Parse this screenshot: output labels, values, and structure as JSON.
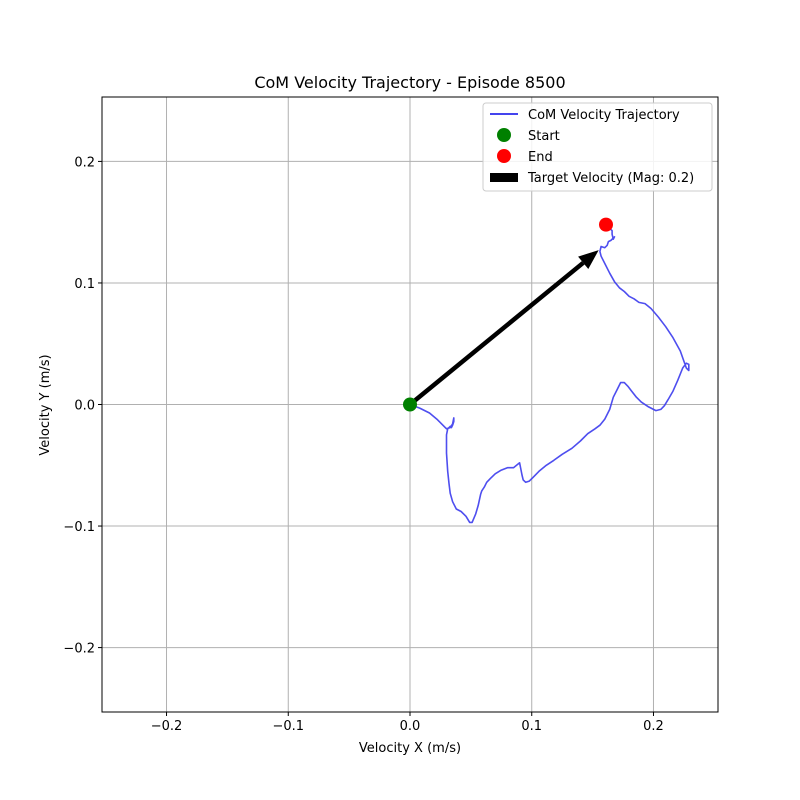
{
  "chart_data": {
    "type": "line",
    "title": "CoM Velocity Trajectory - Episode 8500",
    "xlabel": "Velocity X (m/s)",
    "ylabel": "Velocity Y (m/s)",
    "xlim": [
      -0.253,
      0.253
    ],
    "ylim": [
      -0.253,
      0.253
    ],
    "xticks": [
      -0.2,
      -0.1,
      0.0,
      0.1,
      0.2
    ],
    "yticks": [
      -0.2,
      -0.1,
      0.0,
      0.1,
      0.2
    ],
    "xtick_labels": [
      "−0.2",
      "−0.1",
      "0.0",
      "0.1",
      "0.2"
    ],
    "ytick_labels": [
      "−0.2",
      "−0.1",
      "0.0",
      "0.1",
      "0.2"
    ],
    "grid": true,
    "legend_position": "top-right",
    "series": [
      {
        "name": "CoM Velocity Trajectory",
        "kind": "line",
        "color": "#4444ee",
        "x": [
          0.0,
          0.008,
          0.016,
          0.022,
          0.027,
          0.03,
          0.033,
          0.035,
          0.036,
          0.036,
          0.035,
          0.034,
          0.033,
          0.031,
          0.03,
          0.03,
          0.031,
          0.032,
          0.033,
          0.035,
          0.038,
          0.042,
          0.046,
          0.049,
          0.051,
          0.054,
          0.056,
          0.058,
          0.059,
          0.061,
          0.063,
          0.066,
          0.07,
          0.075,
          0.08,
          0.085,
          0.09,
          0.091,
          0.092,
          0.093,
          0.095,
          0.098,
          0.101,
          0.106,
          0.112,
          0.118,
          0.125,
          0.133,
          0.14,
          0.146,
          0.152,
          0.156,
          0.16,
          0.164,
          0.167,
          0.17,
          0.173,
          0.176,
          0.179,
          0.182,
          0.186,
          0.19,
          0.196,
          0.202,
          0.206,
          0.209,
          0.212,
          0.216,
          0.22,
          0.224,
          0.227,
          0.229,
          0.229,
          0.227,
          0.222,
          0.216,
          0.21,
          0.204,
          0.198,
          0.193,
          0.188,
          0.184,
          0.18,
          0.176,
          0.172,
          0.168,
          0.164,
          0.16,
          0.157,
          0.156,
          0.157,
          0.16,
          0.162,
          0.163,
          0.165,
          0.167,
          0.168,
          0.167,
          0.166,
          0.166,
          0.164,
          0.161
        ],
        "y": [
          0.0,
          -0.003,
          -0.007,
          -0.012,
          -0.017,
          -0.02,
          -0.019,
          -0.016,
          -0.011,
          -0.014,
          -0.017,
          -0.019,
          -0.018,
          -0.02,
          -0.025,
          -0.04,
          -0.055,
          -0.065,
          -0.073,
          -0.08,
          -0.086,
          -0.088,
          -0.092,
          -0.097,
          -0.097,
          -0.09,
          -0.083,
          -0.074,
          -0.071,
          -0.068,
          -0.064,
          -0.061,
          -0.057,
          -0.054,
          -0.052,
          -0.052,
          -0.048,
          -0.053,
          -0.058,
          -0.062,
          -0.064,
          -0.063,
          -0.06,
          -0.055,
          -0.05,
          -0.046,
          -0.041,
          -0.036,
          -0.03,
          -0.024,
          -0.02,
          -0.017,
          -0.012,
          -0.004,
          0.006,
          0.012,
          0.018,
          0.018,
          0.015,
          0.011,
          0.006,
          0.002,
          -0.002,
          -0.005,
          -0.004,
          -0.001,
          0.004,
          0.011,
          0.02,
          0.03,
          0.034,
          0.033,
          0.028,
          0.03,
          0.044,
          0.055,
          0.064,
          0.072,
          0.079,
          0.083,
          0.084,
          0.087,
          0.089,
          0.093,
          0.096,
          0.101,
          0.108,
          0.116,
          0.122,
          0.126,
          0.13,
          0.129,
          0.131,
          0.134,
          0.135,
          0.137,
          0.138,
          0.136,
          0.14,
          0.143,
          0.145,
          0.147
        ]
      },
      {
        "name": "Start",
        "kind": "point",
        "color": "#008000",
        "x": [
          0.0
        ],
        "y": [
          0.0
        ]
      },
      {
        "name": "End",
        "kind": "point",
        "color": "#ff0000",
        "x": [
          0.161
        ],
        "y": [
          0.148
        ]
      },
      {
        "name": "Target Velocity (Mag: 0.2)",
        "kind": "arrow",
        "color": "#000000",
        "x": [
          0.0,
          0.155
        ],
        "y": [
          0.0,
          0.127
        ]
      }
    ]
  }
}
